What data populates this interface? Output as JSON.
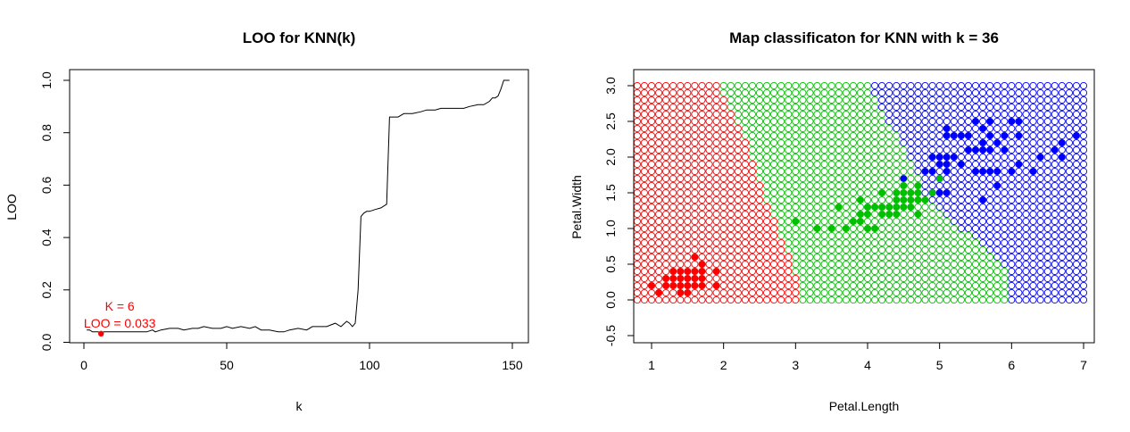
{
  "chart_data": [
    {
      "type": "line",
      "title": "LOO for KNN(k)",
      "xlabel": "k",
      "ylabel": "LOO",
      "xlim": [
        0,
        150
      ],
      "ylim": [
        0,
        1
      ],
      "x_ticks": [
        0,
        50,
        100,
        150
      ],
      "y_ticks": [
        0.0,
        0.2,
        0.4,
        0.6,
        0.8,
        1.0
      ],
      "x_tick_labels": [
        "0",
        "50",
        "100",
        "150"
      ],
      "y_tick_labels": [
        "0.0",
        "0.2",
        "0.4",
        "0.6",
        "0.8",
        "1.0"
      ],
      "series": [
        {
          "color": "#000000",
          "x": [
            1,
            2,
            3,
            4,
            5,
            6,
            7,
            8,
            10,
            12,
            15,
            18,
            20,
            22,
            24,
            25,
            27,
            30,
            33,
            35,
            38,
            40,
            42,
            45,
            48,
            50,
            52,
            55,
            58,
            60,
            62,
            65,
            68,
            70,
            72,
            75,
            78,
            80,
            83,
            85,
            88,
            90,
            92,
            93,
            94,
            95,
            96,
            97,
            98,
            99,
            100,
            102,
            104,
            106,
            107,
            108,
            110,
            112,
            115,
            118,
            120,
            123,
            125,
            128,
            130,
            133,
            135,
            138,
            140,
            142,
            143,
            144,
            145,
            146,
            147,
            148,
            149
          ],
          "y": [
            0.047,
            0.047,
            0.04,
            0.04,
            0.04,
            0.033,
            0.04,
            0.04,
            0.04,
            0.04,
            0.04,
            0.04,
            0.04,
            0.04,
            0.047,
            0.04,
            0.047,
            0.053,
            0.053,
            0.047,
            0.053,
            0.053,
            0.06,
            0.053,
            0.053,
            0.06,
            0.053,
            0.06,
            0.053,
            0.06,
            0.047,
            0.047,
            0.04,
            0.04,
            0.047,
            0.053,
            0.047,
            0.06,
            0.06,
            0.06,
            0.073,
            0.06,
            0.08,
            0.073,
            0.06,
            0.073,
            0.2,
            0.48,
            0.493,
            0.5,
            0.5,
            0.507,
            0.513,
            0.527,
            0.86,
            0.86,
            0.86,
            0.873,
            0.873,
            0.88,
            0.887,
            0.887,
            0.893,
            0.893,
            0.893,
            0.893,
            0.9,
            0.907,
            0.907,
            0.92,
            0.933,
            0.933,
            0.94,
            0.967,
            1.0,
            1.0,
            1.0
          ]
        }
      ],
      "highlight": {
        "k": 6,
        "loo": 0.033,
        "color": "#ff0000",
        "label_k": "K = 6",
        "label_loo": "LOO = 0.033"
      }
    },
    {
      "type": "scatter",
      "title": "Map classificaton for KNN with k =  36",
      "xlabel": "Petal.Length",
      "ylabel": "Petal.Width",
      "xlim": [
        0.8,
        7.2
      ],
      "ylim": [
        -0.6,
        3.2
      ],
      "x_ticks": [
        1,
        2,
        3,
        4,
        5,
        6,
        7
      ],
      "y_ticks": [
        -0.5,
        0.0,
        0.5,
        1.0,
        1.5,
        2.0,
        2.5,
        3.0
      ],
      "x_tick_labels": [
        "1",
        "2",
        "3",
        "4",
        "5",
        "6",
        "7"
      ],
      "y_tick_labels": [
        "-0.5",
        "0.0",
        "0.5",
        "1.0",
        "1.5",
        "2.0",
        "2.5",
        "3.0"
      ],
      "grid": {
        "x_start": 0.8,
        "x_end": 7.0,
        "x_step": 0.1,
        "y_start": 0.0,
        "y_end": 3.0,
        "y_step": 0.1
      },
      "class_colors": {
        "setosa": "#ff0000",
        "versicolor": "#00c000",
        "virginica": "#0000ff"
      },
      "region_boundaries": {
        "setosa_max_x_at_y": [
          [
            0.0,
            3.1
          ],
          [
            0.5,
            2.95
          ],
          [
            1.0,
            2.75
          ],
          [
            1.5,
            2.55
          ],
          [
            2.0,
            2.4
          ],
          [
            2.5,
            2.2
          ],
          [
            3.0,
            1.95
          ]
        ],
        "versicolor_max_x_at_y": [
          [
            0.0,
            5.95
          ],
          [
            0.5,
            5.9
          ],
          [
            1.0,
            5.3
          ],
          [
            1.5,
            4.8
          ],
          [
            2.0,
            4.6
          ],
          [
            2.5,
            4.3
          ],
          [
            3.0,
            4.05
          ]
        ]
      },
      "points": {
        "setosa": [
          [
            1.0,
            0.2
          ],
          [
            1.1,
            0.1
          ],
          [
            1.2,
            0.2
          ],
          [
            1.3,
            0.2
          ],
          [
            1.3,
            0.3
          ],
          [
            1.3,
            0.4
          ],
          [
            1.4,
            0.1
          ],
          [
            1.4,
            0.2
          ],
          [
            1.4,
            0.3
          ],
          [
            1.5,
            0.1
          ],
          [
            1.5,
            0.2
          ],
          [
            1.5,
            0.3
          ],
          [
            1.5,
            0.4
          ],
          [
            1.6,
            0.2
          ],
          [
            1.6,
            0.4
          ],
          [
            1.6,
            0.6
          ],
          [
            1.7,
            0.2
          ],
          [
            1.7,
            0.3
          ],
          [
            1.7,
            0.4
          ],
          [
            1.7,
            0.5
          ],
          [
            1.9,
            0.2
          ],
          [
            1.9,
            0.4
          ],
          [
            1.4,
            0.4
          ],
          [
            1.6,
            0.3
          ],
          [
            1.2,
            0.3
          ]
        ],
        "versicolor": [
          [
            3.0,
            1.1
          ],
          [
            3.3,
            1.0
          ],
          [
            3.5,
            1.0
          ],
          [
            3.6,
            1.3
          ],
          [
            3.7,
            1.0
          ],
          [
            3.8,
            1.1
          ],
          [
            3.9,
            1.1
          ],
          [
            3.9,
            1.2
          ],
          [
            3.9,
            1.4
          ],
          [
            4.0,
            1.0
          ],
          [
            4.0,
            1.2
          ],
          [
            4.0,
            1.3
          ],
          [
            4.1,
            1.0
          ],
          [
            4.1,
            1.3
          ],
          [
            4.2,
            1.2
          ],
          [
            4.2,
            1.3
          ],
          [
            4.2,
            1.5
          ],
          [
            4.3,
            1.3
          ],
          [
            4.4,
            1.2
          ],
          [
            4.4,
            1.3
          ],
          [
            4.4,
            1.4
          ],
          [
            4.5,
            1.3
          ],
          [
            4.5,
            1.5
          ],
          [
            4.5,
            1.6
          ],
          [
            4.6,
            1.3
          ],
          [
            4.6,
            1.4
          ],
          [
            4.6,
            1.5
          ],
          [
            4.7,
            1.2
          ],
          [
            4.7,
            1.4
          ],
          [
            4.7,
            1.5
          ],
          [
            4.7,
            1.6
          ],
          [
            4.8,
            1.4
          ],
          [
            4.8,
            1.8
          ],
          [
            4.9,
            1.5
          ],
          [
            5.0,
            1.7
          ],
          [
            4.4,
            1.5
          ],
          [
            4.5,
            1.4
          ],
          [
            4.3,
            1.2
          ]
        ],
        "virginica": [
          [
            4.5,
            1.7
          ],
          [
            4.8,
            1.8
          ],
          [
            4.9,
            1.8
          ],
          [
            4.9,
            2.0
          ],
          [
            5.0,
            1.5
          ],
          [
            5.0,
            1.9
          ],
          [
            5.0,
            2.0
          ],
          [
            5.1,
            1.5
          ],
          [
            5.1,
            1.8
          ],
          [
            5.1,
            1.9
          ],
          [
            5.1,
            2.0
          ],
          [
            5.1,
            2.3
          ],
          [
            5.1,
            2.4
          ],
          [
            5.2,
            2.0
          ],
          [
            5.2,
            2.3
          ],
          [
            5.3,
            1.9
          ],
          [
            5.3,
            2.3
          ],
          [
            5.4,
            2.1
          ],
          [
            5.4,
            2.3
          ],
          [
            5.5,
            1.8
          ],
          [
            5.5,
            2.1
          ],
          [
            5.5,
            2.5
          ],
          [
            5.6,
            1.4
          ],
          [
            5.6,
            1.8
          ],
          [
            5.6,
            2.1
          ],
          [
            5.6,
            2.2
          ],
          [
            5.6,
            2.4
          ],
          [
            5.7,
            1.8
          ],
          [
            5.7,
            2.1
          ],
          [
            5.7,
            2.3
          ],
          [
            5.7,
            2.5
          ],
          [
            5.8,
            1.6
          ],
          [
            5.8,
            1.8
          ],
          [
            5.8,
            2.2
          ],
          [
            5.9,
            2.1
          ],
          [
            5.9,
            2.3
          ],
          [
            6.0,
            1.8
          ],
          [
            6.0,
            2.5
          ],
          [
            6.1,
            1.9
          ],
          [
            6.1,
            2.3
          ],
          [
            6.1,
            2.5
          ],
          [
            6.3,
            1.8
          ],
          [
            6.4,
            2.0
          ],
          [
            6.6,
            2.1
          ],
          [
            6.7,
            2.0
          ],
          [
            6.7,
            2.2
          ],
          [
            6.9,
            2.3
          ]
        ]
      }
    }
  ]
}
